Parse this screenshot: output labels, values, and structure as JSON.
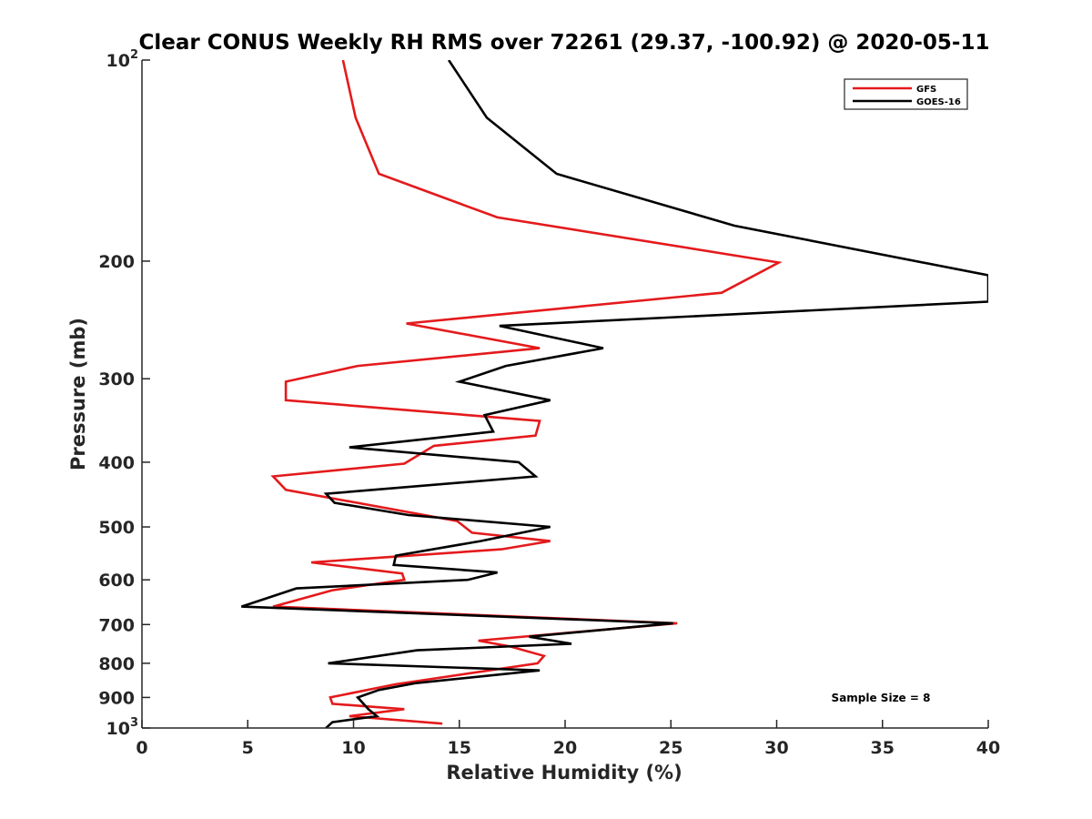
{
  "chart_data": {
    "type": "line",
    "title": "Clear CONUS Weekly RH RMS over 72261 (29.37, -100.92) @ 2020-05-11",
    "xlabel": "Relative Humidity (%)",
    "ylabel": "Pressure (mb)",
    "xlim": [
      0,
      40
    ],
    "ylim": [
      100,
      1000
    ],
    "yscale": "log",
    "y_reversed": true,
    "x_ticks": [
      0,
      5,
      10,
      15,
      20,
      25,
      30,
      35,
      40
    ],
    "x_tick_labels": [
      "0",
      "5",
      "10",
      "15",
      "20",
      "25",
      "30",
      "35",
      "40"
    ],
    "y_ticks": [
      100,
      200,
      300,
      400,
      500,
      600,
      700,
      800,
      900,
      1000
    ],
    "y_tick_labels": [
      {
        "base": "10",
        "exp": "2"
      },
      {
        "base": "200",
        "exp": ""
      },
      {
        "base": "300",
        "exp": ""
      },
      {
        "base": "400",
        "exp": ""
      },
      {
        "base": "500",
        "exp": ""
      },
      {
        "base": "600",
        "exp": ""
      },
      {
        "base": "700",
        "exp": ""
      },
      {
        "base": "800",
        "exp": ""
      },
      {
        "base": "900",
        "exp": ""
      },
      {
        "base": "10",
        "exp": "3"
      }
    ],
    "grid": false,
    "legend_position": "top-right",
    "annotation": "Sample Size = 8",
    "series": [
      {
        "name": "GFS",
        "color": "#e41a1c",
        "x": [
          9.5,
          10.1,
          11.2,
          16.8,
          30.1,
          27.4,
          12.5,
          18.8,
          10.2,
          6.8,
          6.8,
          18.8,
          18.6,
          13.8,
          12.4,
          6.2,
          6.8,
          14.9,
          15.6,
          19.3,
          17.0,
          8.0,
          12.3,
          12.4,
          9.0,
          6.2,
          25.3,
          15.9,
          17.4,
          19.0,
          18.7,
          12.0,
          8.9,
          9.0,
          12.4,
          9.8,
          14.2
        ],
        "y": [
          100,
          122,
          148,
          172,
          201,
          223,
          248,
          270,
          287,
          303,
          323,
          347,
          365,
          378,
          402,
          420,
          440,
          490,
          510,
          525,
          540,
          565,
          587,
          600,
          622,
          658,
          697,
          740,
          755,
          780,
          800,
          860,
          900,
          920,
          937,
          960,
          985
        ]
      },
      {
        "name": "GOES-16",
        "color": "#000000",
        "x": [
          14.5,
          16.3,
          19.6,
          28.0,
          40.0,
          40.0,
          16.9,
          21.8,
          17.2,
          15.0,
          19.3,
          16.2,
          16.6,
          9.8,
          17.8,
          18.6,
          8.7,
          9.1,
          12.6,
          19.3,
          16.0,
          12.0,
          11.9,
          16.8,
          15.4,
          7.3,
          4.7,
          25.1,
          18.3,
          20.3,
          13.0,
          8.8,
          18.8,
          12.9,
          11.2,
          10.2,
          10.7,
          11.1,
          9.0,
          8.7
        ],
        "y": [
          100,
          122,
          148,
          177,
          210,
          230,
          250,
          270,
          287,
          303,
          323,
          340,
          360,
          380,
          400,
          420,
          446,
          460,
          480,
          500,
          525,
          552,
          570,
          585,
          600,
          618,
          658,
          697,
          730,
          748,
          765,
          800,
          820,
          857,
          877,
          900,
          937,
          960,
          980,
          1000
        ]
      }
    ]
  }
}
